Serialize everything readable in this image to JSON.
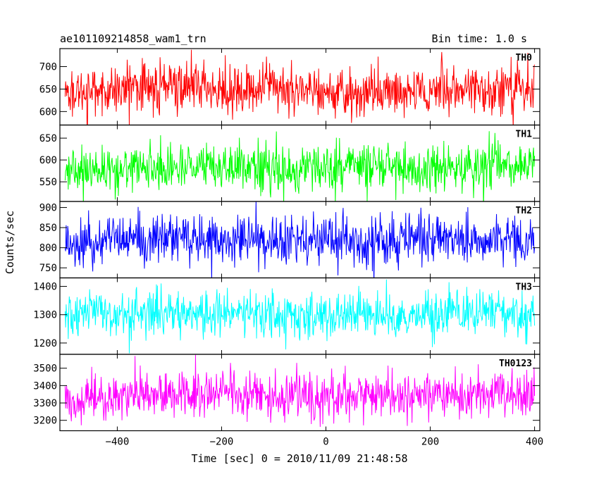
{
  "chart_data": {
    "type": "line",
    "title": "ae101109214858_wam1_trn",
    "subtitle": "Bin time: 1.0 s",
    "xlabel": "Time [sec] 0 = 2010/11/09 21:48:58",
    "ylabel": "Counts/sec",
    "xlim": [
      -510,
      410
    ],
    "x_ticks": [
      -400,
      -200,
      0,
      200,
      400
    ],
    "x_tick_labels": [
      "−400",
      "−200",
      "0",
      "200",
      "400"
    ],
    "x_range": [
      -500,
      400
    ],
    "bin_time": 1.0,
    "grid": false,
    "panels": [
      {
        "name": "TH0",
        "color": "#ff0000",
        "ylim": [
          570,
          740
        ],
        "y_ticks": [
          600,
          650,
          700
        ],
        "y_tick_labels": [
          "600",
          "650",
          "700"
        ],
        "mean": 645,
        "spread": 28
      },
      {
        "name": "TH1",
        "color": "#00ff00",
        "ylim": [
          505,
          680
        ],
        "y_ticks": [
          550,
          600,
          650
        ],
        "y_tick_labels": [
          "550",
          "600",
          "650"
        ],
        "mean": 575,
        "spread": 27
      },
      {
        "name": "TH2",
        "color": "#0000ff",
        "ylim": [
          725,
          915
        ],
        "y_ticks": [
          750,
          800,
          850,
          900
        ],
        "y_tick_labels": [
          "750",
          "800",
          "850",
          "900"
        ],
        "mean": 812,
        "spread": 32
      },
      {
        "name": "TH3",
        "color": "#00ffff",
        "ylim": [
          1160,
          1430
        ],
        "y_ticks": [
          1200,
          1300,
          1400
        ],
        "y_tick_labels": [
          "1200",
          "1300",
          "1400"
        ],
        "mean": 1290,
        "spread": 42
      },
      {
        "name": "TH0123",
        "color": "#ff00ff",
        "ylim": [
          3140,
          3580
        ],
        "y_ticks": [
          3200,
          3300,
          3400,
          3500
        ],
        "y_tick_labels": [
          "3200",
          "3300",
          "3400",
          "3500"
        ],
        "mean": 3325,
        "spread": 70
      }
    ]
  }
}
